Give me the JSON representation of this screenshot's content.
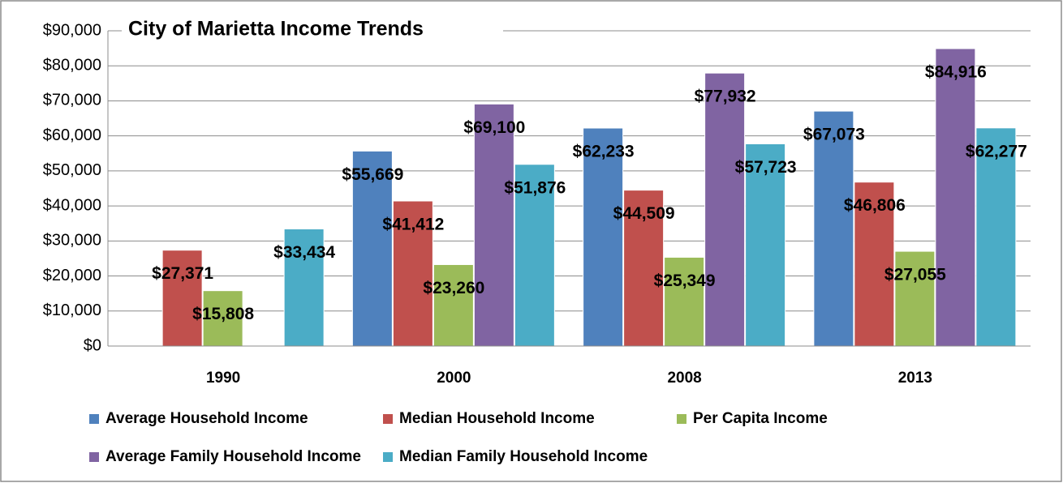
{
  "chart_data": {
    "type": "bar",
    "title": "City of Marietta Income Trends",
    "categories": [
      "1990",
      "2000",
      "2008",
      "2013"
    ],
    "series": [
      {
        "name": "Average Household Income",
        "color": "#4f81bd",
        "values": [
          null,
          55669,
          62233,
          67073
        ],
        "value_labels": [
          null,
          "$55,669",
          "$62,233",
          "$67,073"
        ]
      },
      {
        "name": "Median Household Income",
        "color": "#c0504d",
        "values": [
          27371,
          41412,
          44509,
          46806
        ],
        "value_labels": [
          "$27,371",
          "$41,412",
          "$44,509",
          "$46,806"
        ]
      },
      {
        "name": "Per Capita Income",
        "color": "#9bbb59",
        "values": [
          15808,
          23260,
          25349,
          27055
        ],
        "value_labels": [
          "$15,808",
          "$23,260",
          "$25,349",
          "$27,055"
        ]
      },
      {
        "name": "Average Family Household Income",
        "color": "#8064a2",
        "values": [
          null,
          69100,
          77932,
          84916
        ],
        "value_labels": [
          null,
          "$69,100",
          "$77,932",
          "$84,916"
        ]
      },
      {
        "name": "Median Family Household Income",
        "color": "#4bacc6",
        "values": [
          33434,
          51876,
          57723,
          62277
        ],
        "value_labels": [
          "$33,434",
          "$51,876",
          "$57,723",
          "$62,277"
        ]
      }
    ],
    "ylim": [
      0,
      90000
    ],
    "yticks": [
      {
        "value": 0,
        "label": "$0"
      },
      {
        "value": 10000,
        "label": "$10,000"
      },
      {
        "value": 20000,
        "label": "$20,000"
      },
      {
        "value": 30000,
        "label": "$30,000"
      },
      {
        "value": 40000,
        "label": "$40,000"
      },
      {
        "value": 50000,
        "label": "$50,000"
      },
      {
        "value": 60000,
        "label": "$60,000"
      },
      {
        "value": 70000,
        "label": "$70,000"
      },
      {
        "value": 80000,
        "label": "$80,000"
      },
      {
        "value": 90000,
        "label": "$90,000"
      }
    ],
    "grid": true,
    "legend": "bottom"
  }
}
